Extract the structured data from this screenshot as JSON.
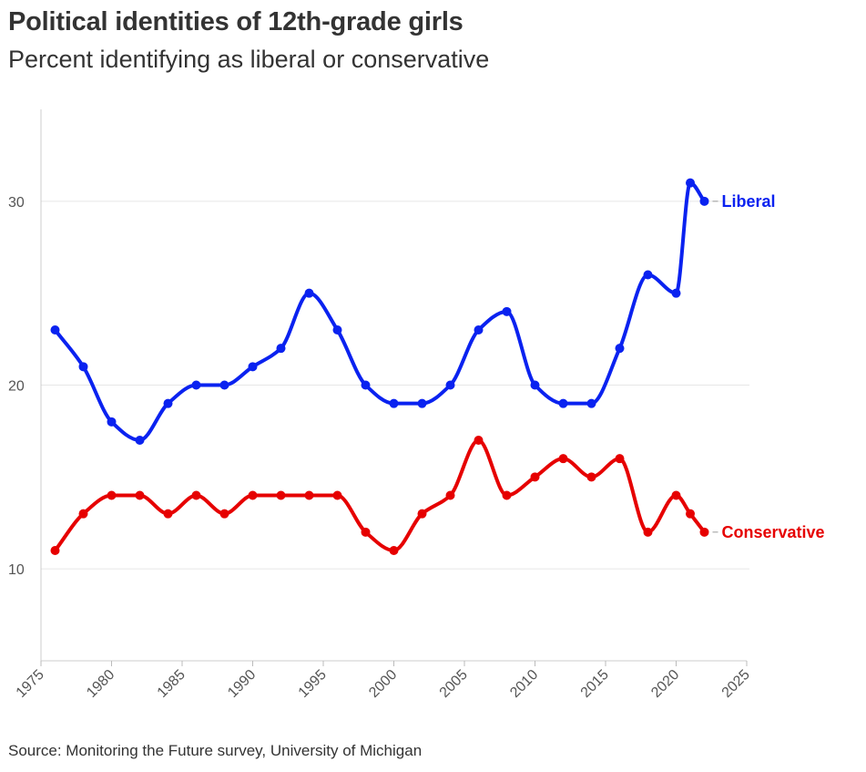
{
  "header": {
    "title": "Political identities of 12th-grade girls",
    "subtitle": "Percent identifying as liberal or conservative"
  },
  "footer": {
    "source": "Source: Monitoring the Future survey, University of Michigan"
  },
  "chart_data": {
    "type": "line",
    "title": "Political identities of 12th-grade girls",
    "subtitle": "Percent identifying as liberal or conservative",
    "xlabel": "",
    "ylabel": "",
    "xlim": [
      1975,
      2025
    ],
    "ylim": [
      5,
      35
    ],
    "x_ticks": [
      1975,
      1980,
      1985,
      1990,
      1995,
      2000,
      2005,
      2010,
      2015,
      2020,
      2025
    ],
    "y_ticks": [
      10,
      20,
      30
    ],
    "grid": "horizontal",
    "legend": "end-of-line labels",
    "series": [
      {
        "name": "Liberal",
        "color": "#0a22f0",
        "x": [
          1976,
          1978,
          1980,
          1982,
          1984,
          1986,
          1988,
          1990,
          1992,
          1994,
          1996,
          1998,
          2000,
          2002,
          2004,
          2006,
          2008,
          2010,
          2012,
          2014,
          2016,
          2018,
          2020,
          2021,
          2022
        ],
        "values": [
          23,
          21,
          18,
          17,
          19,
          20,
          20,
          21,
          22,
          25,
          23,
          20,
          19,
          19,
          20,
          23,
          24,
          20,
          19,
          19,
          22,
          26,
          25,
          31,
          30
        ]
      },
      {
        "name": "Conservative",
        "color": "#e60000",
        "x": [
          1976,
          1978,
          1980,
          1982,
          1984,
          1986,
          1988,
          1990,
          1992,
          1994,
          1996,
          1998,
          2000,
          2002,
          2004,
          2006,
          2008,
          2010,
          2012,
          2014,
          2016,
          2018,
          2020,
          2021,
          2022
        ],
        "values": [
          11,
          13,
          14,
          14,
          13,
          14,
          13,
          14,
          14,
          14,
          14,
          12,
          11,
          13,
          14,
          17,
          14,
          15,
          16,
          15,
          16,
          12,
          14,
          13,
          12
        ]
      }
    ]
  }
}
